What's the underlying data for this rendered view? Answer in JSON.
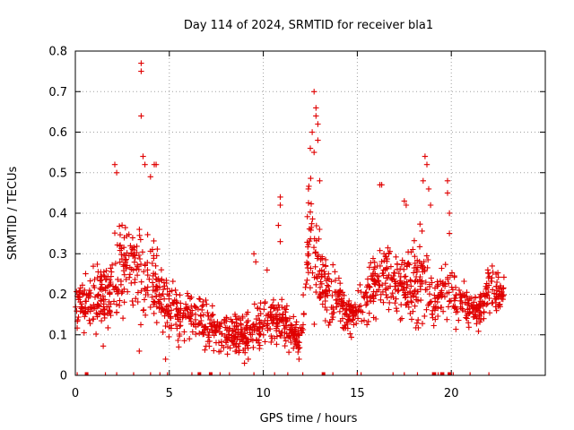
{
  "chart_data": {
    "type": "scatter",
    "title": "Day 114 of 2024, SRMTID for receiver bla1",
    "xlabel": "GPS time / hours",
    "ylabel": "SRMTID / TECUs",
    "xlim": [
      0,
      25
    ],
    "ylim": [
      0,
      0.8
    ],
    "xticks": [
      0,
      5,
      10,
      15,
      20
    ],
    "yticks": [
      0,
      0.1,
      0.2,
      0.3,
      0.4,
      0.5,
      0.6,
      0.7,
      0.8
    ],
    "x_tick_labels": [
      "0",
      "5",
      "10",
      "15",
      "20"
    ],
    "y_tick_labels": [
      "0",
      "0.1",
      "0.2",
      "0.3",
      "0.4",
      "0.5",
      "0.6",
      "0.7",
      "0.8"
    ],
    "grid": true,
    "marker": "+",
    "color": "#e00000",
    "trend": [
      [
        0.0,
        0.16,
        0.05
      ],
      [
        0.5,
        0.19,
        0.06
      ],
      [
        1.0,
        0.19,
        0.08
      ],
      [
        1.5,
        0.18,
        0.07
      ],
      [
        2.0,
        0.22,
        0.09
      ],
      [
        2.5,
        0.26,
        0.1
      ],
      [
        3.0,
        0.28,
        0.1
      ],
      [
        3.5,
        0.27,
        0.11
      ],
      [
        4.0,
        0.24,
        0.1
      ],
      [
        4.5,
        0.19,
        0.07
      ],
      [
        5.0,
        0.17,
        0.06
      ],
      [
        5.5,
        0.15,
        0.05
      ],
      [
        6.0,
        0.15,
        0.05
      ],
      [
        6.5,
        0.14,
        0.05
      ],
      [
        7.0,
        0.12,
        0.04
      ],
      [
        7.5,
        0.11,
        0.04
      ],
      [
        8.0,
        0.1,
        0.04
      ],
      [
        8.5,
        0.1,
        0.04
      ],
      [
        9.0,
        0.1,
        0.04
      ],
      [
        9.5,
        0.12,
        0.04
      ],
      [
        10.0,
        0.13,
        0.05
      ],
      [
        10.5,
        0.14,
        0.05
      ],
      [
        11.0,
        0.13,
        0.05
      ],
      [
        11.5,
        0.11,
        0.04
      ],
      [
        12.0,
        0.09,
        0.03
      ],
      [
        12.5,
        0.38,
        0.15
      ],
      [
        13.0,
        0.24,
        0.09
      ],
      [
        13.5,
        0.2,
        0.07
      ],
      [
        14.0,
        0.19,
        0.06
      ],
      [
        14.5,
        0.15,
        0.04
      ],
      [
        15.0,
        0.15,
        0.04
      ],
      [
        15.5,
        0.19,
        0.06
      ],
      [
        16.0,
        0.24,
        0.07
      ],
      [
        16.5,
        0.25,
        0.08
      ],
      [
        17.0,
        0.22,
        0.07
      ],
      [
        17.5,
        0.22,
        0.07
      ],
      [
        18.0,
        0.23,
        0.08
      ],
      [
        18.5,
        0.26,
        0.09
      ],
      [
        19.0,
        0.17,
        0.06
      ],
      [
        19.5,
        0.2,
        0.06
      ],
      [
        20.0,
        0.2,
        0.06
      ],
      [
        20.5,
        0.18,
        0.04
      ],
      [
        21.0,
        0.16,
        0.04
      ],
      [
        21.5,
        0.16,
        0.04
      ],
      [
        22.0,
        0.22,
        0.06
      ],
      [
        22.5,
        0.2,
        0.04
      ],
      [
        22.8,
        0.21,
        0.03
      ]
    ],
    "outliers": [
      [
        3.5,
        0.77
      ],
      [
        3.5,
        0.75
      ],
      [
        3.5,
        0.64
      ],
      [
        3.6,
        0.54
      ],
      [
        3.7,
        0.52
      ],
      [
        2.1,
        0.52
      ],
      [
        2.2,
        0.5
      ],
      [
        4.2,
        0.52
      ],
      [
        4.3,
        0.52
      ],
      [
        4.0,
        0.49
      ],
      [
        12.7,
        0.7
      ],
      [
        12.8,
        0.66
      ],
      [
        12.8,
        0.64
      ],
      [
        12.9,
        0.62
      ],
      [
        12.6,
        0.6
      ],
      [
        12.9,
        0.58
      ],
      [
        12.5,
        0.56
      ],
      [
        12.7,
        0.55
      ],
      [
        13.0,
        0.48
      ],
      [
        12.4,
        0.46
      ],
      [
        16.2,
        0.47
      ],
      [
        16.3,
        0.47
      ],
      [
        17.5,
        0.43
      ],
      [
        17.6,
        0.42
      ],
      [
        18.6,
        0.54
      ],
      [
        18.7,
        0.52
      ],
      [
        18.5,
        0.48
      ],
      [
        18.8,
        0.46
      ],
      [
        18.9,
        0.42
      ],
      [
        19.8,
        0.48
      ],
      [
        19.8,
        0.45
      ],
      [
        19.9,
        0.4
      ],
      [
        19.9,
        0.35
      ],
      [
        10.9,
        0.44
      ],
      [
        10.9,
        0.42
      ],
      [
        10.8,
        0.37
      ],
      [
        10.9,
        0.33
      ],
      [
        9.5,
        0.3
      ],
      [
        9.6,
        0.28
      ],
      [
        10.2,
        0.26
      ],
      [
        3.4,
        0.06
      ],
      [
        4.8,
        0.04
      ],
      [
        5.5,
        0.07
      ],
      [
        9.0,
        0.03
      ],
      [
        9.2,
        0.04
      ],
      [
        11.9,
        0.04
      ]
    ],
    "data_gaps_at_hours": [
      0.1,
      0.6,
      1.6,
      2.2,
      3.1,
      4.0,
      4.5,
      4.9,
      6.2,
      6.6,
      7.2,
      7.7,
      8.2,
      9.5,
      10.6,
      11.3,
      12.1,
      13.2,
      13.7,
      15.0,
      15.2,
      16.9,
      17.5,
      18.2,
      19.0,
      19.3,
      19.6,
      19.9,
      20.1,
      21.0,
      22.0
    ],
    "data_gap_blocks_at_hours": [
      0.6,
      6.6,
      7.2,
      13.2,
      19.1,
      19.5,
      19.9
    ]
  }
}
